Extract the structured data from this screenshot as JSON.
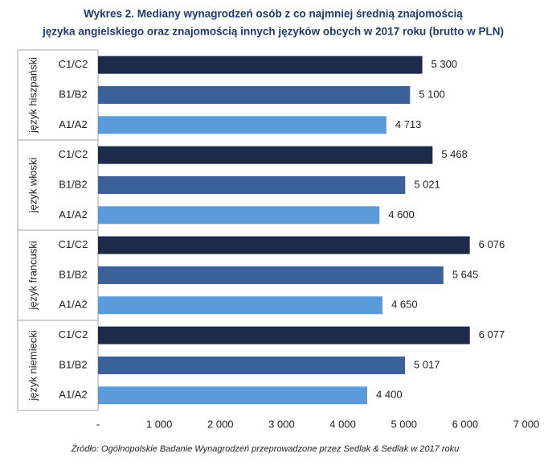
{
  "chart_data": {
    "type": "bar",
    "orientation": "horizontal",
    "title": [
      "Wykres 2. Mediany wynagrodzeń osób z co najmniej średnią znajomością",
      "języka angielskiego oraz znajomością innych języków obcych w 2017 roku (brutto w PLN)"
    ],
    "categories": [
      "język hiszpański",
      "język włoski",
      "język francuski",
      "język niemiecki"
    ],
    "series": [
      {
        "name": "C1/C2",
        "color": "#1c2b4a",
        "values": [
          5300,
          5468,
          6076,
          6077
        ],
        "value_labels": [
          "5 300",
          "5 468",
          "6 076",
          "6 077"
        ]
      },
      {
        "name": "B1/B2",
        "color": "#3a6199",
        "values": [
          5100,
          5021,
          5645,
          5017
        ],
        "value_labels": [
          "5 100",
          "5 021",
          "5 645",
          "5 017"
        ]
      },
      {
        "name": "A1/A2",
        "color": "#5b9bd9",
        "values": [
          4713,
          4600,
          4650,
          4400
        ],
        "value_labels": [
          "4 713",
          "4 600",
          "4 650",
          "4 400"
        ]
      }
    ],
    "xlim": [
      0,
      7000
    ],
    "xticks": [
      {
        "value": 0,
        "label": "-"
      },
      {
        "value": 1000,
        "label": "1 000"
      },
      {
        "value": 2000,
        "label": "2 000"
      },
      {
        "value": 3000,
        "label": "3 000"
      },
      {
        "value": 4000,
        "label": "4 000"
      },
      {
        "value": 5000,
        "label": "5 000"
      },
      {
        "value": 6000,
        "label": "6 000"
      },
      {
        "value": 7000,
        "label": "7 000"
      }
    ],
    "source": "Źródło: Ogólnopolskie Badanie Wynagrodzeń przeprowadzone przez Sedlak & Sedlak w 2017 roku"
  }
}
